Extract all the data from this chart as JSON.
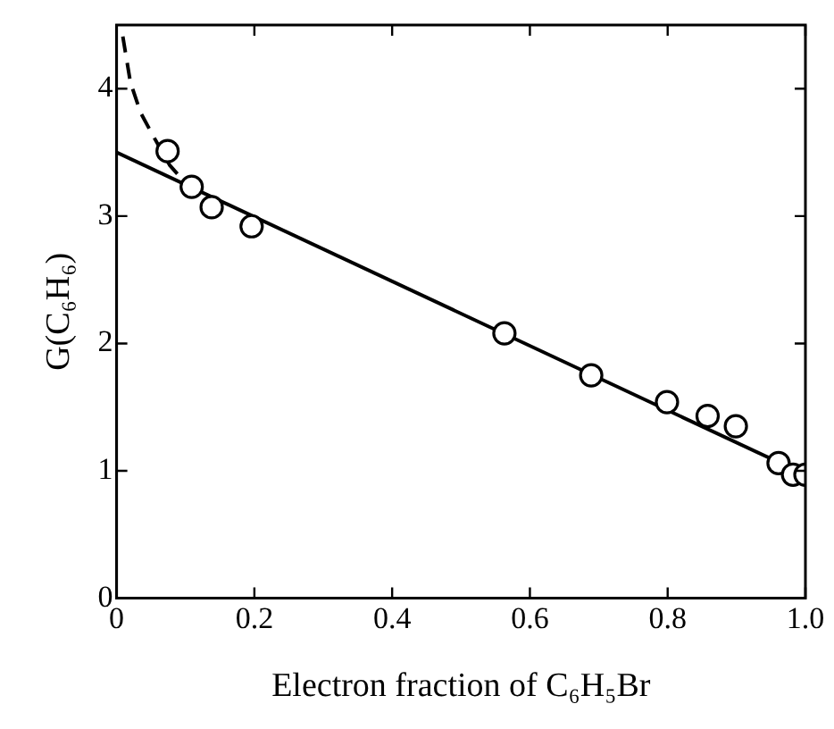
{
  "chart_data": {
    "type": "scatter",
    "xlabel": "Electron fraction of C₆H₅Br",
    "ylabel": "G(C₆H₆)",
    "xlim": [
      0,
      1
    ],
    "ylim": [
      0,
      4.5
    ],
    "xticks": [
      0,
      0.2,
      0.4,
      0.6,
      0.8,
      {
        "value": 1,
        "label": "1.0"
      }
    ],
    "yticks": [
      0,
      1,
      2,
      3,
      4
    ],
    "grid": false,
    "legend": false,
    "series": [
      {
        "color": "#000000",
        "marker": "circle",
        "x": [
          0.074,
          0.109,
          0.138,
          0.196,
          0.563,
          0.689,
          0.799,
          0.858,
          0.899,
          0.961,
          0.982,
          1.0
        ],
        "values": [
          3.51,
          3.23,
          3.07,
          2.92,
          2.08,
          1.75,
          1.54,
          1.43,
          1.35,
          1.06,
          0.97,
          0.97
        ]
      },
      {
        "type": "line",
        "color": "#000000",
        "line_style": "solid",
        "marker": "none",
        "x": [
          0,
          0.96
        ],
        "values": [
          3.5,
          1.07
        ]
      },
      {
        "type": "line",
        "color": "#000000",
        "line_style": "dashed",
        "marker": "none",
        "x": [
          0.009,
          0.02,
          0.035,
          0.053,
          0.077,
          0.095
        ],
        "values": [
          4.41,
          4.05,
          3.81,
          3.63,
          3.4,
          3.29
        ]
      }
    ]
  }
}
